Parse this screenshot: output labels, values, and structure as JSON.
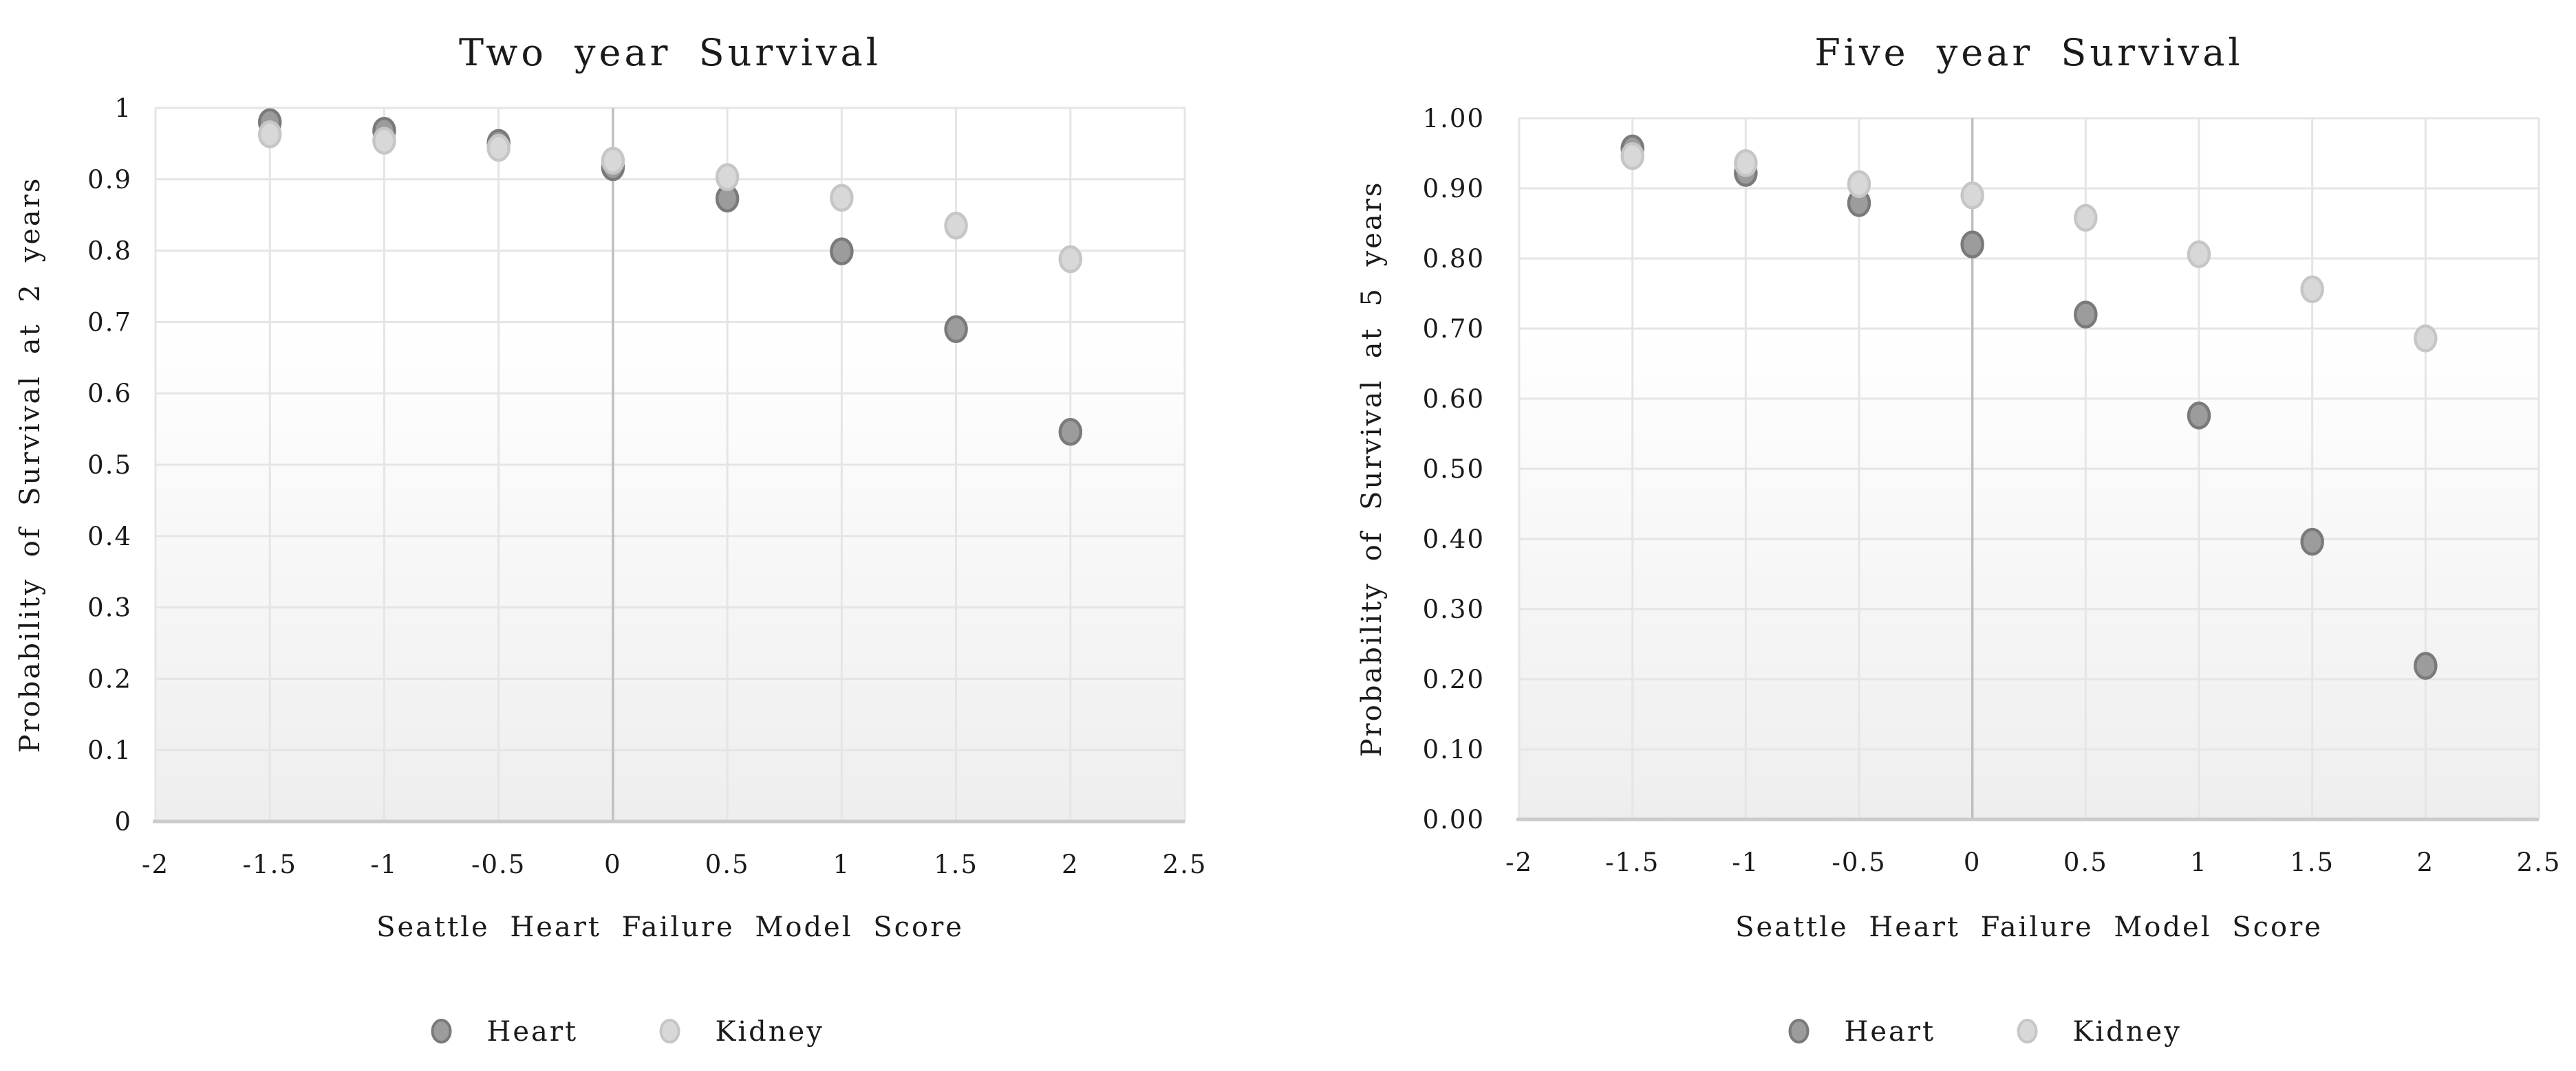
{
  "figure": {
    "background": "#ffffff",
    "text_color": "#1a1a1a",
    "gridline_color": "#e5e5e5",
    "zero_line_color": "#bfbfbf",
    "baseline_color": "#cbcbcb",
    "plot_gradient_top": "#ffffff",
    "plot_gradient_bottom": "#eeeeee"
  },
  "legend": {
    "position": "bottom",
    "items": [
      {
        "label": "Heart",
        "fill": "#9c9c9c",
        "stroke": "#7a7a7a"
      },
      {
        "label": "Kidney",
        "fill": "#d8d8d8",
        "stroke": "#c6c6c6"
      }
    ]
  },
  "chart_data": [
    {
      "type": "scatter",
      "title": "Two year Survival",
      "xlabel": "Seattle Heart Failure Model Score",
      "ylabel": "Probability of Survival at 2 years",
      "x": [
        -1.5,
        -1,
        -0.5,
        0,
        0.5,
        1,
        1.5,
        2
      ],
      "series": [
        {
          "name": "Heart",
          "fill": "#9c9c9c",
          "stroke": "#7a7a7a",
          "values": [
            0.98,
            0.968,
            0.951,
            0.917,
            0.873,
            0.799,
            0.69,
            0.546
          ]
        },
        {
          "name": "Kidney",
          "fill": "#d8d8d8",
          "stroke": "#c6c6c6",
          "values": [
            0.963,
            0.954,
            0.944,
            0.926,
            0.903,
            0.874,
            0.835,
            0.788
          ]
        }
      ],
      "xlim": [
        -2,
        2.5
      ],
      "ylim": [
        0,
        1
      ],
      "x_tick_values": [
        -2,
        -1.5,
        -1,
        -0.5,
        0,
        0.5,
        1,
        1.5,
        2,
        2.5
      ],
      "x_tick_labels": [
        "-2",
        "-1.5",
        "-1",
        "-0.5",
        "0",
        "0.5",
        "1",
        "1.5",
        "2",
        "2.5"
      ],
      "y_tick_values": [
        1,
        0.9,
        0.8,
        0.7,
        0.6,
        0.5,
        0.4,
        0.3,
        0.2,
        0.1,
        0
      ],
      "y_tick_labels": [
        "1",
        "0.9",
        "0.8",
        "0.7",
        "0.6",
        "0.5",
        "0.4",
        "0.3",
        "0.2",
        "0.1",
        "0"
      ],
      "grid": true,
      "legend_position": "bottom"
    },
    {
      "type": "scatter",
      "title": "Five year Survival",
      "xlabel": "Seattle Heart Failure Model Score",
      "ylabel": "Probability of Survival at 5 years",
      "x": [
        -1.5,
        -1,
        -0.5,
        0,
        0.5,
        1,
        1.5,
        2
      ],
      "series": [
        {
          "name": "Heart",
          "fill": "#9c9c9c",
          "stroke": "#7a7a7a",
          "values": [
            0.957,
            0.922,
            0.879,
            0.82,
            0.72,
            0.576,
            0.396,
            0.219
          ]
        },
        {
          "name": "Kidney",
          "fill": "#d8d8d8",
          "stroke": "#c6c6c6",
          "values": [
            0.946,
            0.936,
            0.906,
            0.89,
            0.858,
            0.806,
            0.756,
            0.686
          ]
        }
      ],
      "xlim": [
        -2,
        2.5
      ],
      "ylim": [
        0,
        1
      ],
      "x_tick_values": [
        -2,
        -1.5,
        -1,
        -0.5,
        0,
        0.5,
        1,
        1.5,
        2,
        2.5
      ],
      "x_tick_labels": [
        "-2",
        "-1.5",
        "-1",
        "-0.5",
        "0",
        "0.5",
        "1",
        "1.5",
        "2",
        "2.5"
      ],
      "y_tick_values": [
        1,
        0.9,
        0.8,
        0.7,
        0.6,
        0.5,
        0.4,
        0.3,
        0.2,
        0.1,
        0
      ],
      "y_tick_labels": [
        "1.00",
        "0.90",
        "0.80",
        "0.70",
        "0.60",
        "0.50",
        "0.40",
        "0.30",
        "0.20",
        "0.10",
        "0.00"
      ],
      "grid": true,
      "legend_position": "bottom"
    }
  ]
}
